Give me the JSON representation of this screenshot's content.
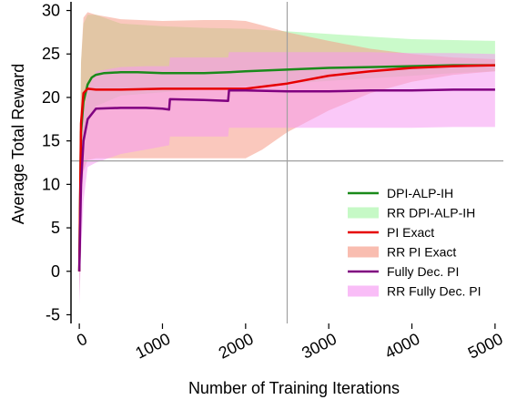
{
  "chart_data": {
    "type": "line",
    "title": "",
    "xlabel": "Number of Training Iterations",
    "ylabel": "Average Total Reward",
    "xlim": [
      -100,
      5100
    ],
    "ylim": [
      -6,
      31
    ],
    "xticks": [
      0,
      1000,
      2000,
      3000,
      4000,
      5000
    ],
    "xtick_labels": [
      "0",
      "1000",
      "2000",
      "3000",
      "4000",
      "5000"
    ],
    "yticks": [
      -5,
      0,
      5,
      10,
      15,
      20,
      25,
      30
    ],
    "ytick_labels": [
      "-5",
      "0",
      "5",
      "10",
      "15",
      "20",
      "25",
      "30"
    ],
    "reference_lines": {
      "x": 2500,
      "y": 12.7
    },
    "legend_position": "right",
    "series": [
      {
        "name": "DPI-ALP-IH",
        "color": "#1a8a1a",
        "x": [
          0,
          20,
          50,
          100,
          150,
          200,
          300,
          500,
          700,
          1000,
          1200,
          1500,
          1800,
          2000,
          2500,
          3000,
          3500,
          4000,
          4500,
          5000
        ],
        "y": [
          0,
          16,
          19.5,
          21.5,
          22.3,
          22.6,
          22.8,
          22.9,
          22.9,
          22.8,
          22.8,
          22.8,
          22.9,
          23.0,
          23.2,
          23.4,
          23.5,
          23.6,
          23.7,
          23.7
        ]
      },
      {
        "name": "PI Exact",
        "color": "#e60000",
        "x": [
          0,
          20,
          50,
          100,
          200,
          500,
          1000,
          1500,
          1800,
          2000,
          2500,
          3000,
          3500,
          4000,
          4500,
          5000
        ],
        "y": [
          0,
          17,
          20.5,
          21.0,
          20.9,
          20.9,
          21.0,
          21.0,
          21.0,
          21.0,
          21.6,
          22.5,
          23.0,
          23.4,
          23.6,
          23.7
        ]
      },
      {
        "name": "Fully Dec. PI",
        "color": "#800080",
        "x": [
          0,
          20,
          50,
          100,
          200,
          500,
          800,
          1000,
          1080,
          1090,
          1500,
          1790,
          1800,
          2000,
          2500,
          3000,
          3500,
          4000,
          4500,
          5000
        ],
        "y": [
          0,
          10,
          15,
          17.5,
          18.7,
          18.8,
          18.8,
          18.7,
          18.6,
          19.8,
          19.7,
          19.6,
          20.8,
          20.8,
          20.7,
          20.7,
          20.8,
          20.8,
          20.9,
          20.9
        ]
      }
    ],
    "bands": [
      {
        "name": "RR DPI-ALP-IH",
        "color": "#9ff59f",
        "x": [
          0,
          20,
          50,
          100,
          200,
          500,
          1000,
          1500,
          2000,
          2500,
          3000,
          3500,
          4000,
          4500,
          5000
        ],
        "lower": [
          -3,
          8,
          14,
          17,
          19,
          20.2,
          20.6,
          21.0,
          21.3,
          21.6,
          21.9,
          22.2,
          22.5,
          22.8,
          23.0
        ],
        "upper": [
          3,
          24,
          28.5,
          29.5,
          29.5,
          28.5,
          28.2,
          28.0,
          27.9,
          27.6,
          27.3,
          27.0,
          26.7,
          26.6,
          26.5
        ]
      },
      {
        "name": "RR PI Exact",
        "color": "#f59b86",
        "x": [
          0,
          20,
          50,
          100,
          200,
          500,
          1000,
          1500,
          1800,
          2000,
          2200,
          2500,
          3000,
          3500,
          4000,
          4500,
          5000
        ],
        "lower": [
          -3,
          7,
          11.5,
          12.8,
          13.0,
          13.0,
          13.0,
          13.0,
          13.0,
          13.0,
          14.0,
          16.0,
          18.5,
          20.5,
          21.8,
          22.6,
          23.0
        ],
        "upper": [
          3,
          24,
          29.2,
          29.8,
          29.5,
          29.0,
          28.8,
          28.9,
          28.9,
          28.8,
          28.3,
          27.5,
          26.5,
          25.6,
          25.0,
          24.6,
          24.4
        ]
      },
      {
        "name": "RR Fully Dec. PI",
        "color": "#f59bf2",
        "x": [
          0,
          20,
          50,
          100,
          200,
          500,
          800,
          1080,
          1090,
          1790,
          1800,
          2000,
          2500,
          3000,
          3500,
          4000,
          4500,
          5000
        ],
        "lower": [
          -4,
          2,
          8,
          12.0,
          12.5,
          13.5,
          14.0,
          14.5,
          15.5,
          15.5,
          16.5,
          16.5,
          16.5,
          16.5,
          16.5,
          16.5,
          16.6,
          16.6
        ],
        "upper": [
          3,
          12,
          18,
          21.0,
          23.0,
          23.5,
          23.6,
          23.6,
          24.6,
          24.6,
          25.2,
          25.2,
          25.2,
          25.2,
          25.2,
          25.1,
          25.1,
          25.0
        ]
      }
    ],
    "legend": [
      {
        "label": "DPI-ALP-IH",
        "kind": "line",
        "color": "#1a8a1a"
      },
      {
        "label": "RR DPI-ALP-IH",
        "kind": "patch",
        "color": "#c6f9c6"
      },
      {
        "label": "PI Exact",
        "kind": "line",
        "color": "#e60000"
      },
      {
        "label": "RR PI Exact",
        "kind": "patch",
        "color": "#f9bdb0"
      },
      {
        "label": "Fully Dec. PI",
        "kind": "line",
        "color": "#800080"
      },
      {
        "label": "RR Fully Dec. PI",
        "kind": "patch",
        "color": "#f9bdf7"
      }
    ]
  }
}
